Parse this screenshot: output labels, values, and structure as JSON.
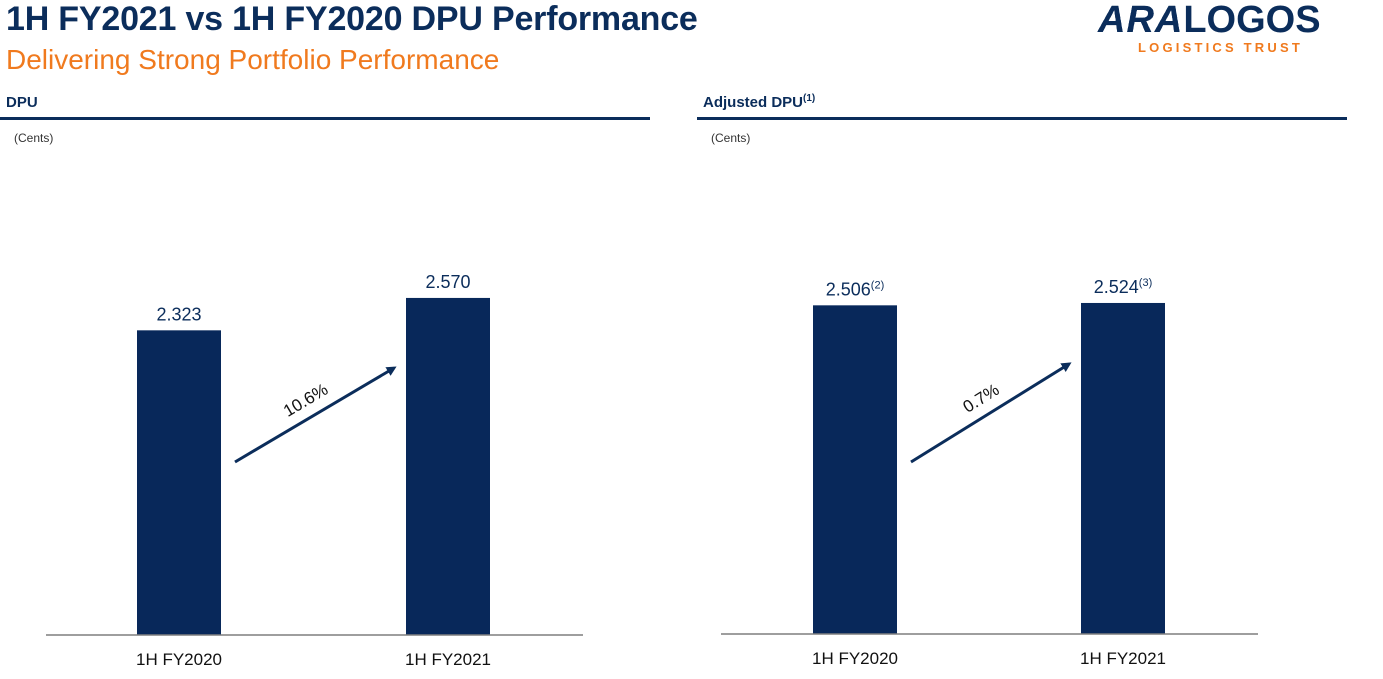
{
  "header": {
    "title": "1H FY2021 vs 1H FY2020 DPU Performance",
    "subtitle": "Delivering Strong Portfolio Performance"
  },
  "logo": {
    "brand_left": "ARA",
    "brand_right": "LOGOS",
    "tagline": "LOGISTICS TRUST"
  },
  "colors": {
    "navy": "#0b2d5b",
    "orange": "#f07a1e",
    "bar": "#08285a",
    "axis": "#7f7f7f"
  },
  "chart_data": [
    {
      "type": "bar",
      "title": "DPU",
      "title_footnote": "",
      "ylabel": "(Cents)",
      "categories": [
        "1H FY2020",
        "1H FY2021"
      ],
      "values": [
        2.323,
        2.57
      ],
      "value_labels": [
        "2.323",
        "2.570"
      ],
      "value_footnotes": [
        "",
        ""
      ],
      "growth_label": "10.6%",
      "ylim": [
        0,
        2.6
      ]
    },
    {
      "type": "bar",
      "title": "Adjusted DPU",
      "title_footnote": "(1)",
      "ylabel": "(Cents)",
      "categories": [
        "1H FY2020",
        "1H FY2021"
      ],
      "values": [
        2.506,
        2.524
      ],
      "value_labels": [
        "2.506",
        "2.524"
      ],
      "value_footnotes": [
        "(2)",
        "(3)"
      ],
      "growth_label": "0.7%",
      "ylim": [
        0,
        2.6
      ]
    }
  ]
}
